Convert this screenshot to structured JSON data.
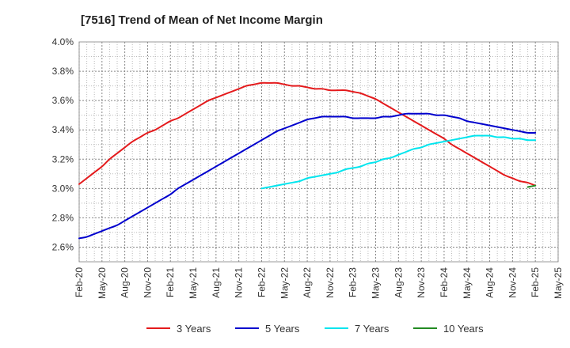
{
  "chart_data": {
    "type": "line",
    "title": "[7516]  Trend of Mean of Net Income Margin",
    "xlabel": "",
    "ylabel": "",
    "x_ticks": [
      "Feb-20",
      "May-20",
      "Aug-20",
      "Nov-20",
      "Feb-21",
      "May-21",
      "Aug-21",
      "Nov-21",
      "Feb-22",
      "May-22",
      "Aug-22",
      "Nov-22",
      "Feb-23",
      "May-23",
      "Aug-23",
      "Nov-23",
      "Feb-24",
      "May-24",
      "Aug-24",
      "Nov-24",
      "Feb-25",
      "May-25"
    ],
    "y_ticks": [
      "4.0%",
      "3.8%",
      "3.6%",
      "3.4%",
      "3.2%",
      "3.0%",
      "2.8%",
      "2.6%"
    ],
    "ylim": [
      2.5,
      4.0
    ],
    "y_unit": "%",
    "grid": true,
    "legend_position": "bottom",
    "series": [
      {
        "name": "3 Years",
        "color": "#e41a1c",
        "points": [
          [
            "Feb-20",
            3.03
          ],
          [
            "Mar-20",
            3.07
          ],
          [
            "Apr-20",
            3.11
          ],
          [
            "May-20",
            3.15
          ],
          [
            "Jun-20",
            3.2
          ],
          [
            "Jul-20",
            3.24
          ],
          [
            "Aug-20",
            3.28
          ],
          [
            "Sep-20",
            3.32
          ],
          [
            "Oct-20",
            3.35
          ],
          [
            "Nov-20",
            3.38
          ],
          [
            "Dec-20",
            3.4
          ],
          [
            "Jan-21",
            3.43
          ],
          [
            "Feb-21",
            3.46
          ],
          [
            "Mar-21",
            3.48
          ],
          [
            "Apr-21",
            3.51
          ],
          [
            "May-21",
            3.54
          ],
          [
            "Jun-21",
            3.57
          ],
          [
            "Jul-21",
            3.6
          ],
          [
            "Aug-21",
            3.62
          ],
          [
            "Sep-21",
            3.64
          ],
          [
            "Oct-21",
            3.66
          ],
          [
            "Nov-21",
            3.68
          ],
          [
            "Dec-21",
            3.7
          ],
          [
            "Jan-22",
            3.71
          ],
          [
            "Feb-22",
            3.72
          ],
          [
            "Mar-22",
            3.72
          ],
          [
            "Apr-22",
            3.72
          ],
          [
            "May-22",
            3.71
          ],
          [
            "Jun-22",
            3.7
          ],
          [
            "Jul-22",
            3.7
          ],
          [
            "Aug-22",
            3.69
          ],
          [
            "Sep-22",
            3.68
          ],
          [
            "Oct-22",
            3.68
          ],
          [
            "Nov-22",
            3.67
          ],
          [
            "Dec-22",
            3.67
          ],
          [
            "Jan-23",
            3.67
          ],
          [
            "Feb-23",
            3.66
          ],
          [
            "Mar-23",
            3.65
          ],
          [
            "Apr-23",
            3.63
          ],
          [
            "May-23",
            3.61
          ],
          [
            "Jun-23",
            3.58
          ],
          [
            "Jul-23",
            3.55
          ],
          [
            "Aug-23",
            3.52
          ],
          [
            "Sep-23",
            3.49
          ],
          [
            "Oct-23",
            3.46
          ],
          [
            "Nov-23",
            3.43
          ],
          [
            "Dec-23",
            3.4
          ],
          [
            "Jan-24",
            3.37
          ],
          [
            "Feb-24",
            3.34
          ],
          [
            "Mar-24",
            3.3
          ],
          [
            "Apr-24",
            3.27
          ],
          [
            "May-24",
            3.24
          ],
          [
            "Jun-24",
            3.21
          ],
          [
            "Jul-24",
            3.18
          ],
          [
            "Aug-24",
            3.15
          ],
          [
            "Sep-24",
            3.12
          ],
          [
            "Oct-24",
            3.09
          ],
          [
            "Nov-24",
            3.07
          ],
          [
            "Dec-24",
            3.05
          ],
          [
            "Jan-25",
            3.04
          ],
          [
            "Feb-25",
            3.02
          ]
        ]
      },
      {
        "name": "5 Years",
        "color": "#0000cd",
        "points": [
          [
            "Feb-20",
            2.66
          ],
          [
            "Mar-20",
            2.67
          ],
          [
            "Apr-20",
            2.69
          ],
          [
            "May-20",
            2.71
          ],
          [
            "Jun-20",
            2.73
          ],
          [
            "Jul-20",
            2.75
          ],
          [
            "Aug-20",
            2.78
          ],
          [
            "Sep-20",
            2.81
          ],
          [
            "Oct-20",
            2.84
          ],
          [
            "Nov-20",
            2.87
          ],
          [
            "Dec-20",
            2.9
          ],
          [
            "Jan-21",
            2.93
          ],
          [
            "Feb-21",
            2.96
          ],
          [
            "Mar-21",
            3.0
          ],
          [
            "Apr-21",
            3.03
          ],
          [
            "May-21",
            3.06
          ],
          [
            "Jun-21",
            3.09
          ],
          [
            "Jul-21",
            3.12
          ],
          [
            "Aug-21",
            3.15
          ],
          [
            "Sep-21",
            3.18
          ],
          [
            "Oct-21",
            3.21
          ],
          [
            "Nov-21",
            3.24
          ],
          [
            "Dec-21",
            3.27
          ],
          [
            "Jan-22",
            3.3
          ],
          [
            "Feb-22",
            3.33
          ],
          [
            "Mar-22",
            3.36
          ],
          [
            "Apr-22",
            3.39
          ],
          [
            "May-22",
            3.41
          ],
          [
            "Jun-22",
            3.43
          ],
          [
            "Jul-22",
            3.45
          ],
          [
            "Aug-22",
            3.47
          ],
          [
            "Sep-22",
            3.48
          ],
          [
            "Oct-22",
            3.49
          ],
          [
            "Nov-22",
            3.49
          ],
          [
            "Dec-22",
            3.49
          ],
          [
            "Jan-23",
            3.49
          ],
          [
            "Feb-23",
            3.48
          ],
          [
            "Mar-23",
            3.48
          ],
          [
            "Apr-23",
            3.48
          ],
          [
            "May-23",
            3.48
          ],
          [
            "Jun-23",
            3.49
          ],
          [
            "Jul-23",
            3.49
          ],
          [
            "Aug-23",
            3.5
          ],
          [
            "Sep-23",
            3.51
          ],
          [
            "Oct-23",
            3.51
          ],
          [
            "Nov-23",
            3.51
          ],
          [
            "Dec-23",
            3.51
          ],
          [
            "Jan-24",
            3.5
          ],
          [
            "Feb-24",
            3.5
          ],
          [
            "Mar-24",
            3.49
          ],
          [
            "Apr-24",
            3.48
          ],
          [
            "May-24",
            3.46
          ],
          [
            "Jun-24",
            3.45
          ],
          [
            "Jul-24",
            3.44
          ],
          [
            "Aug-24",
            3.43
          ],
          [
            "Sep-24",
            3.42
          ],
          [
            "Oct-24",
            3.41
          ],
          [
            "Nov-24",
            3.4
          ],
          [
            "Dec-24",
            3.39
          ],
          [
            "Jan-25",
            3.38
          ],
          [
            "Feb-25",
            3.38
          ]
        ]
      },
      {
        "name": "7 Years",
        "color": "#00e5ee",
        "points": [
          [
            "Feb-22",
            3.0
          ],
          [
            "Mar-22",
            3.01
          ],
          [
            "Apr-22",
            3.02
          ],
          [
            "May-22",
            3.03
          ],
          [
            "Jun-22",
            3.04
          ],
          [
            "Jul-22",
            3.05
          ],
          [
            "Aug-22",
            3.07
          ],
          [
            "Sep-22",
            3.08
          ],
          [
            "Oct-22",
            3.09
          ],
          [
            "Nov-22",
            3.1
          ],
          [
            "Dec-22",
            3.11
          ],
          [
            "Jan-23",
            3.13
          ],
          [
            "Feb-23",
            3.14
          ],
          [
            "Mar-23",
            3.15
          ],
          [
            "Apr-23",
            3.17
          ],
          [
            "May-23",
            3.18
          ],
          [
            "Jun-23",
            3.2
          ],
          [
            "Jul-23",
            3.21
          ],
          [
            "Aug-23",
            3.23
          ],
          [
            "Sep-23",
            3.25
          ],
          [
            "Oct-23",
            3.27
          ],
          [
            "Nov-23",
            3.28
          ],
          [
            "Dec-23",
            3.3
          ],
          [
            "Jan-24",
            3.31
          ],
          [
            "Feb-24",
            3.32
          ],
          [
            "Mar-24",
            3.33
          ],
          [
            "Apr-24",
            3.34
          ],
          [
            "May-24",
            3.35
          ],
          [
            "Jun-24",
            3.36
          ],
          [
            "Jul-24",
            3.36
          ],
          [
            "Aug-24",
            3.36
          ],
          [
            "Sep-24",
            3.35
          ],
          [
            "Oct-24",
            3.35
          ],
          [
            "Nov-24",
            3.34
          ],
          [
            "Dec-24",
            3.34
          ],
          [
            "Jan-25",
            3.33
          ],
          [
            "Feb-25",
            3.33
          ]
        ]
      },
      {
        "name": "10 Years",
        "color": "#228b22",
        "points": [
          [
            "Jan-25",
            3.01
          ],
          [
            "Feb-25",
            3.02
          ]
        ]
      }
    ]
  }
}
